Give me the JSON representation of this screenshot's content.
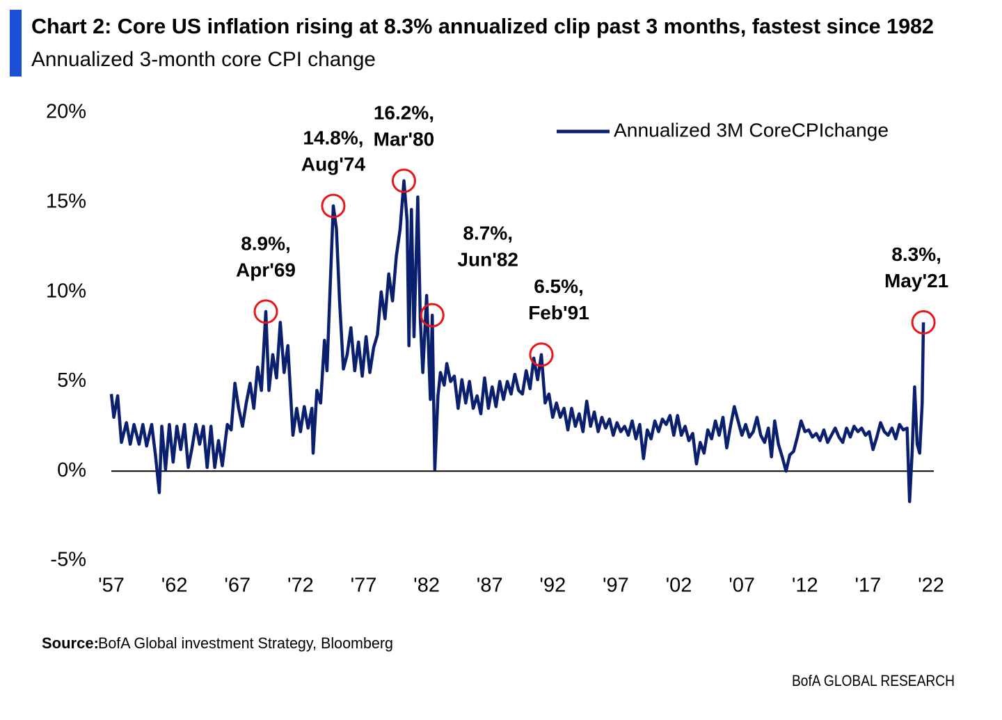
{
  "chart_data": {
    "type": "line",
    "title": "Chart 2: Core US inflation rising at 8.3% annualized clip past 3 months, fastest since 1982",
    "subtitle": "Annualized 3-month core CPI change",
    "source_label": "Source:",
    "source": "BofA Global investment Strategy, Bloomberg",
    "footer": "BofA GLOBAL RESEARCH",
    "legend": "top-right",
    "xlim": [
      1957,
      2022
    ],
    "ylim": [
      -5,
      20
    ],
    "xticks": [
      {
        "value": 1957,
        "label": "'57"
      },
      {
        "value": 1962,
        "label": "'62"
      },
      {
        "value": 1967,
        "label": "'67"
      },
      {
        "value": 1972,
        "label": "'72"
      },
      {
        "value": 1977,
        "label": "'77"
      },
      {
        "value": 1982,
        "label": "'82"
      },
      {
        "value": 1987,
        "label": "'87"
      },
      {
        "value": 1992,
        "label": "'92"
      },
      {
        "value": 1997,
        "label": "'97"
      },
      {
        "value": 2002,
        "label": "'02"
      },
      {
        "value": 2007,
        "label": "'07"
      },
      {
        "value": 2012,
        "label": "'12"
      },
      {
        "value": 2017,
        "label": "'17"
      },
      {
        "value": 2022,
        "label": "'22"
      }
    ],
    "yticks": [
      {
        "value": 20,
        "label": "20%"
      },
      {
        "value": 15,
        "label": "15%"
      },
      {
        "value": 10,
        "label": "10%"
      },
      {
        "value": 5,
        "label": "5%"
      },
      {
        "value": 0,
        "label": "0%"
      },
      {
        "value": -5,
        "label": "-5%"
      }
    ],
    "x": [
      1957.0,
      1957.2,
      1957.5,
      1957.8,
      1958.2,
      1958.5,
      1958.8,
      1959.2,
      1959.5,
      1959.8,
      1960.2,
      1960.5,
      1960.8,
      1961.0,
      1961.3,
      1961.6,
      1961.9,
      1962.2,
      1962.5,
      1962.8,
      1963.1,
      1963.4,
      1963.7,
      1964.0,
      1964.3,
      1964.6,
      1964.9,
      1965.2,
      1965.5,
      1965.8,
      1966.2,
      1966.5,
      1966.8,
      1967.1,
      1967.4,
      1967.7,
      1968.0,
      1968.3,
      1968.6,
      1968.9,
      1969.25,
      1969.5,
      1969.8,
      1970.1,
      1970.4,
      1970.7,
      1971.0,
      1971.4,
      1971.7,
      1972.0,
      1972.3,
      1972.6,
      1972.9,
      1973.0,
      1973.3,
      1973.6,
      1973.9,
      1974.1,
      1974.35,
      1974.6,
      1974.85,
      1975.1,
      1975.4,
      1975.7,
      1976.0,
      1976.3,
      1976.6,
      1976.9,
      1977.2,
      1977.5,
      1977.8,
      1978.1,
      1978.4,
      1978.7,
      1979.0,
      1979.3,
      1979.6,
      1979.9,
      1980.2,
      1980.45,
      1980.6,
      1980.8,
      1981.0,
      1981.3,
      1981.5,
      1981.7,
      1982.0,
      1982.3,
      1982.45,
      1982.65,
      1982.9,
      1983.1,
      1983.4,
      1983.6,
      1983.9,
      1984.2,
      1984.5,
      1984.8,
      1985.1,
      1985.4,
      1985.7,
      1986.0,
      1986.3,
      1986.6,
      1986.9,
      1987.2,
      1987.5,
      1987.8,
      1988.1,
      1988.4,
      1988.7,
      1989.0,
      1989.3,
      1989.6,
      1989.9,
      1990.2,
      1990.5,
      1990.8,
      1991.1,
      1991.4,
      1991.7,
      1992.0,
      1992.3,
      1992.6,
      1992.9,
      1993.2,
      1993.5,
      1993.8,
      1994.1,
      1994.4,
      1994.7,
      1995.0,
      1995.3,
      1995.6,
      1995.9,
      1996.2,
      1996.5,
      1996.8,
      1997.1,
      1997.4,
      1997.7,
      1998.0,
      1998.3,
      1998.6,
      1998.9,
      1999.2,
      1999.5,
      1999.8,
      2000.1,
      2000.4,
      2000.7,
      2001.0,
      2001.3,
      2001.6,
      2001.9,
      2002.2,
      2002.5,
      2002.8,
      2003.1,
      2003.4,
      2003.7,
      2004.0,
      2004.3,
      2004.6,
      2004.9,
      2005.2,
      2005.5,
      2005.8,
      2006.1,
      2006.4,
      2006.7,
      2007.0,
      2007.3,
      2007.6,
      2007.9,
      2008.2,
      2008.5,
      2008.8,
      2009.1,
      2009.35,
      2009.6,
      2009.9,
      2010.2,
      2010.5,
      2010.8,
      2011.1,
      2011.4,
      2011.7,
      2012.0,
      2012.3,
      2012.6,
      2012.9,
      2013.2,
      2013.5,
      2013.8,
      2014.1,
      2014.4,
      2014.7,
      2015.0,
      2015.3,
      2015.6,
      2015.9,
      2016.2,
      2016.5,
      2016.8,
      2017.1,
      2017.4,
      2017.7,
      2018.0,
      2018.3,
      2018.6,
      2018.9,
      2019.2,
      2019.5,
      2019.8,
      2020.1,
      2020.3,
      2020.5,
      2020.7,
      2020.9,
      2021.1,
      2021.3,
      2021.4
    ],
    "series": [
      {
        "name": "Annualized 3M CoreCPIchange",
        "color": "#0a1f6e",
        "values": [
          4.3,
          3.0,
          4.2,
          1.6,
          2.7,
          1.5,
          2.6,
          1.5,
          2.6,
          1.4,
          2.6,
          0.9,
          -1.2,
          2.5,
          0.1,
          2.6,
          0.5,
          2.5,
          1.2,
          2.6,
          0.2,
          1.3,
          2.6,
          1.5,
          2.5,
          0.2,
          2.5,
          0.2,
          1.7,
          0.3,
          2.6,
          2.3,
          4.9,
          3.5,
          2.5,
          3.8,
          4.9,
          3.5,
          5.8,
          4.5,
          8.9,
          4.5,
          6.5,
          5.2,
          8.3,
          5.5,
          7.0,
          2.0,
          3.5,
          2.2,
          3.6,
          2.4,
          3.5,
          1.0,
          4.5,
          3.8,
          7.3,
          5.6,
          10.2,
          14.8,
          13.5,
          9.5,
          5.7,
          6.5,
          8.0,
          5.6,
          7.2,
          5.3,
          7.5,
          5.5,
          6.9,
          7.6,
          10.0,
          8.5,
          11.0,
          9.5,
          12.0,
          13.5,
          16.2,
          14.0,
          7.0,
          14.6,
          7.5,
          15.3,
          8.5,
          5.5,
          9.8,
          4.0,
          8.7,
          0.1,
          4.2,
          5.5,
          4.8,
          6.0,
          5.0,
          5.3,
          3.5,
          5.1,
          3.8,
          5.0,
          3.5,
          4.2,
          3.2,
          5.2,
          3.5,
          4.7,
          3.6,
          5.0,
          4.0,
          5.0,
          4.3,
          5.4,
          4.5,
          4.3,
          5.6,
          4.6,
          6.3,
          5.1,
          6.5,
          3.8,
          4.3,
          3.0,
          3.8,
          3.0,
          3.5,
          2.3,
          3.5,
          2.5,
          3.2,
          2.2,
          3.9,
          2.5,
          3.3,
          2.2,
          3.0,
          2.4,
          2.9,
          2.0,
          2.7,
          2.2,
          2.5,
          2.0,
          2.8,
          1.8,
          2.6,
          0.7,
          2.3,
          1.8,
          2.8,
          2.2,
          2.9,
          2.6,
          3.1,
          2.0,
          3.1,
          2.0,
          2.5,
          1.7,
          2.1,
          0.4,
          1.6,
          1.0,
          2.3,
          1.8,
          2.8,
          2.0,
          3.0,
          1.3,
          2.5,
          3.6,
          2.8,
          2.0,
          2.6,
          1.9,
          2.2,
          3.0,
          2.0,
          1.6,
          2.4,
          0.8,
          2.8,
          1.5,
          0.8,
          0.0,
          0.9,
          1.1,
          1.9,
          2.8,
          2.2,
          2.3,
          1.9,
          2.1,
          1.7,
          2.3,
          1.6,
          2.0,
          2.4,
          1.9,
          1.6,
          2.4,
          1.9,
          2.5,
          2.2,
          2.4,
          2.0,
          2.2,
          1.2,
          1.9,
          2.7,
          2.2,
          2.0,
          2.4,
          1.8,
          2.6,
          2.3,
          2.4,
          -1.7,
          1.0,
          4.7,
          1.5,
          1.0,
          3.8,
          8.3
        ]
      }
    ],
    "annotations": [
      {
        "x": 1969.25,
        "y": 8.9,
        "text": [
          "8.9%,",
          "Apr'69"
        ]
      },
      {
        "x": 1974.6,
        "y": 14.8,
        "text": [
          "14.8%,",
          "Aug'74"
        ]
      },
      {
        "x": 1980.2,
        "y": 16.2,
        "text": [
          "16.2%,",
          "Mar'80"
        ]
      },
      {
        "x": 1982.45,
        "y": 8.7,
        "text": [
          "8.7%,",
          "Jun'82"
        ]
      },
      {
        "x": 1991.1,
        "y": 6.5,
        "text": [
          "6.5%,",
          "Feb'91"
        ]
      },
      {
        "x": 2021.4,
        "y": 8.3,
        "text": [
          "8.3%,",
          "May'21"
        ]
      }
    ]
  }
}
